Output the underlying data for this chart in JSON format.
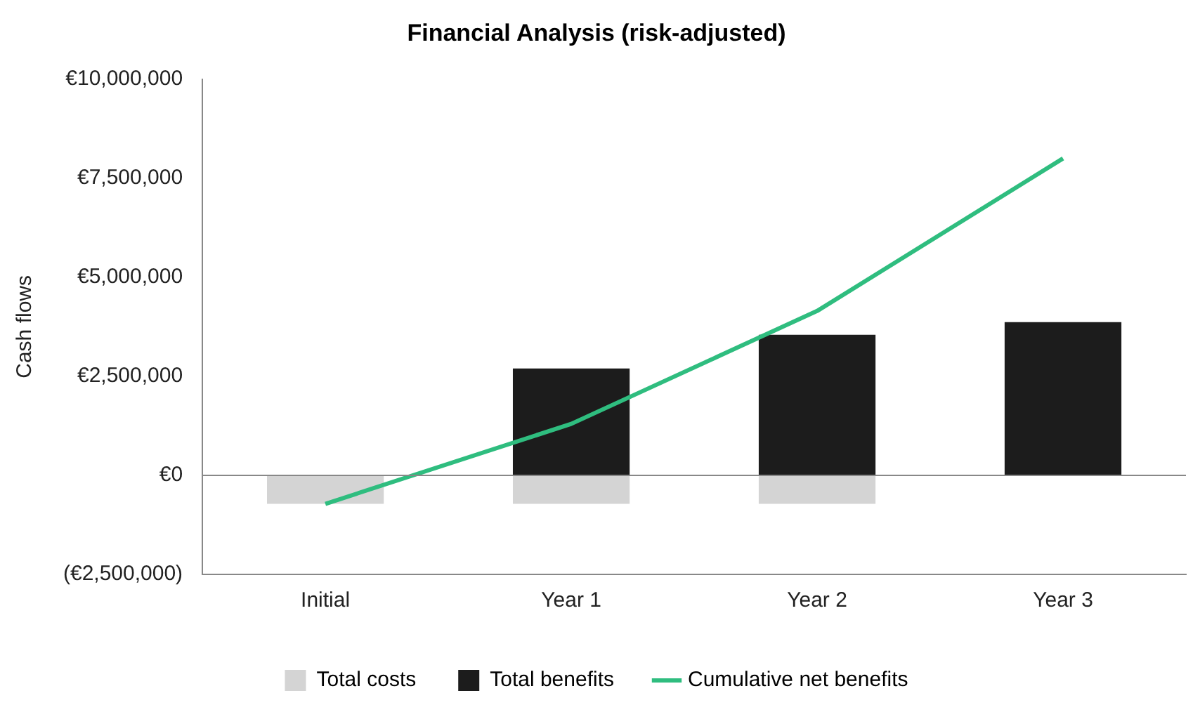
{
  "chart_data": {
    "type": "bar",
    "title": "Financial Analysis (risk-adjusted)",
    "ylabel": "Cash flows",
    "categories": [
      "Initial",
      "Year 1",
      "Year 2",
      "Year 3"
    ],
    "series": [
      {
        "name": "Total costs",
        "color": "#d4d4d4",
        "values": [
          -720000,
          -720000,
          -720000,
          null
        ]
      },
      {
        "name": "Total benefits",
        "color": "#1c1c1c",
        "values": [
          null,
          2700000,
          3550000,
          3870000
        ]
      },
      {
        "name": "Cumulative net benefits",
        "type": "line",
        "color": "#2fbd7f",
        "values": [
          -720000,
          1300000,
          4150000,
          8000000
        ]
      }
    ],
    "stacked": true,
    "ylim": [
      -2500000,
      10000000
    ],
    "yticks": [
      {
        "value": -2500000,
        "label": "(€2,500,000)"
      },
      {
        "value": 0,
        "label": "€0"
      },
      {
        "value": 2500000,
        "label": "€2,500,000"
      },
      {
        "value": 5000000,
        "label": "€5,000,000"
      },
      {
        "value": 7500000,
        "label": "€7,500,000"
      },
      {
        "value": 10000000,
        "label": "€10,000,000"
      }
    ],
    "ref_lines": [
      {
        "axis": "y",
        "value": 0,
        "color": "#888888"
      }
    ],
    "grid": false,
    "legend": "bottom",
    "marker": "none",
    "line_style": "solid"
  }
}
